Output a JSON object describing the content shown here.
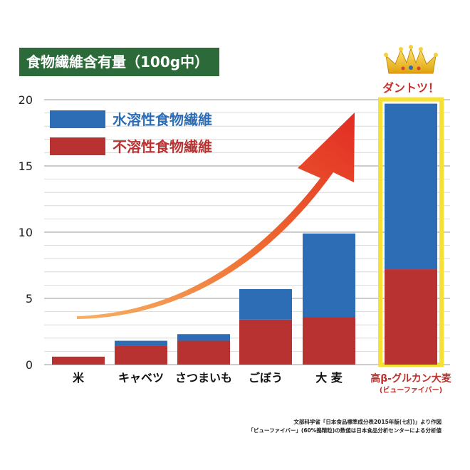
{
  "header": {
    "title": "食物繊維含有量（100g中）"
  },
  "chart_data": {
    "type": "bar",
    "stacked": true,
    "categories": [
      "米",
      "キャベツ",
      "さつまいも",
      "ごぼう",
      "大 麦",
      "高β-グルカン大麦"
    ],
    "highlight_sublabel": "(ビューファイバー)",
    "series": [
      {
        "name": "不溶性食物繊維",
        "color": "#b83232",
        "values": [
          0.6,
          1.4,
          1.8,
          3.4,
          3.6,
          7.2
        ]
      },
      {
        "name": "水溶性食物繊維",
        "color": "#2d6db5",
        "values": [
          0.0,
          0.4,
          0.5,
          2.3,
          6.3,
          12.5
        ]
      }
    ],
    "ylim": [
      0,
      20
    ],
    "yticks": [
      "0",
      "5",
      "10",
      "15",
      "20"
    ],
    "grid": true,
    "legend_position": "top-left",
    "highlight_index": 5,
    "highlight_color": "#f7e034",
    "arrow_color": "#e23a2a",
    "annotations": {
      "callout": "ダントツ！",
      "crown_icon": "crown-icon"
    }
  },
  "source_note": {
    "line1": "文部科学省「日本食品標準成分表2015年版(七訂)」より作図",
    "line2": "「ビューファイバー」(60%搗精粒)の数値は日本食品分析センターによる分析値"
  }
}
